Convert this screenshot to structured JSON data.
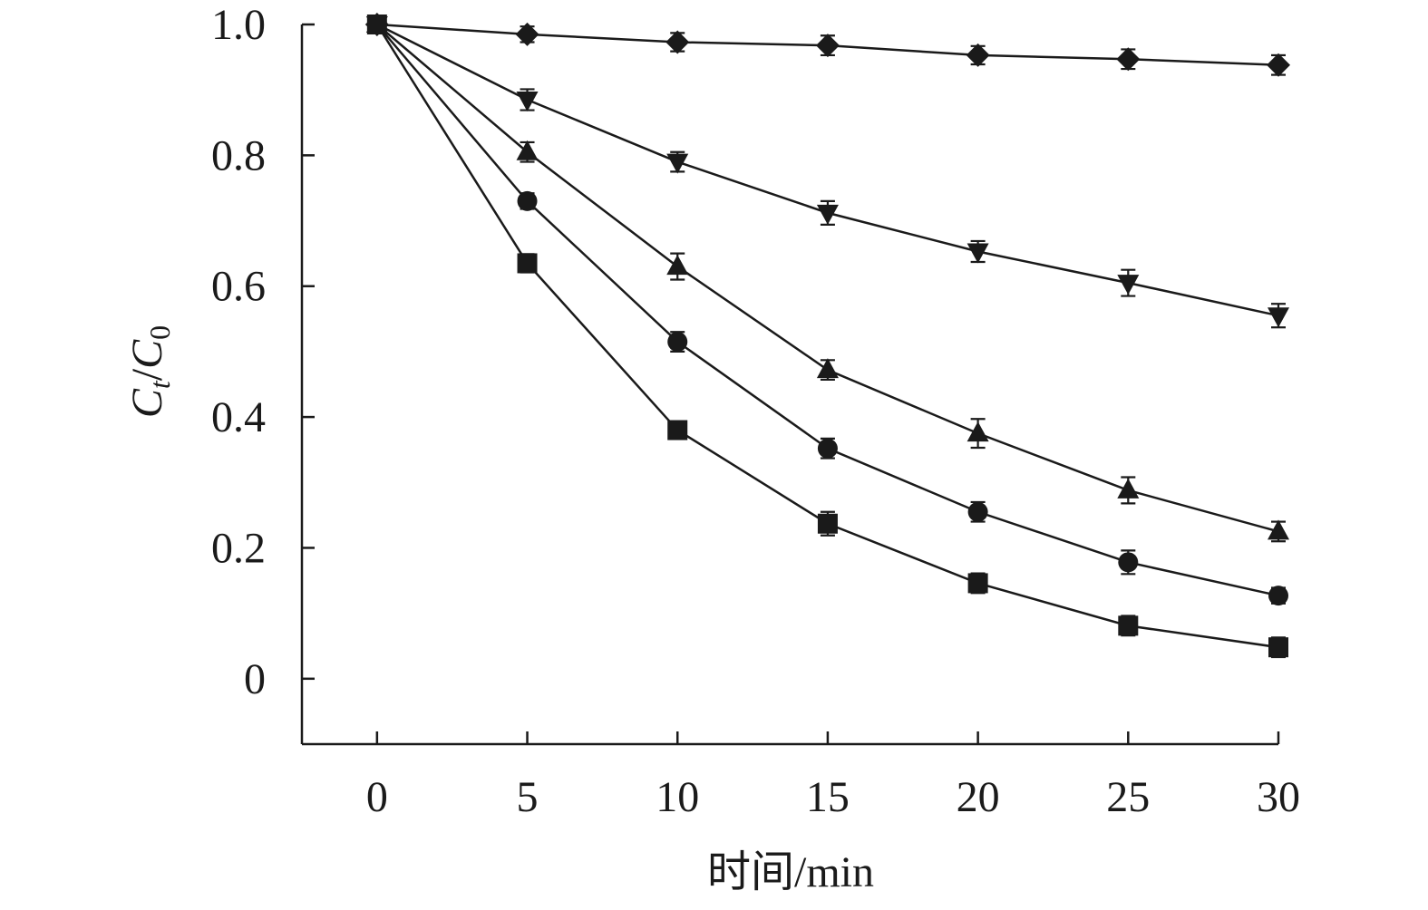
{
  "chart_data": {
    "type": "line",
    "title": "",
    "xlabel": "时间/min",
    "ylabel_parts": {
      "C1": "C",
      "sub1": "t",
      "slash": "/",
      "C2": "C",
      "sub2": "0"
    },
    "x": [
      0,
      5,
      10,
      15,
      20,
      25,
      30
    ],
    "xlim": [
      -2.5,
      30
    ],
    "ylim": [
      -0.1,
      1.0
    ],
    "xticks": [
      0,
      5,
      10,
      15,
      20,
      25,
      30
    ],
    "xtick_labels": [
      "0",
      "5",
      "10",
      "15",
      "20",
      "25",
      "30"
    ],
    "yticks": [
      0,
      0.2,
      0.4,
      0.6,
      0.8,
      1.0
    ],
    "ytick_labels": [
      "0",
      "0.2",
      "0.4",
      "0.6",
      "0.8",
      "1.0"
    ],
    "grid": false,
    "legend": "none",
    "color": "#1a1a1a",
    "series": [
      {
        "marker": "diamond",
        "values": [
          1.0,
          0.985,
          0.973,
          0.968,
          0.953,
          0.947,
          0.938
        ],
        "errors": [
          0.008,
          0.012,
          0.014,
          0.015,
          0.014,
          0.015,
          0.015
        ]
      },
      {
        "marker": "triangle-down",
        "values": [
          1.0,
          0.885,
          0.79,
          0.712,
          0.653,
          0.605,
          0.555
        ],
        "errors": [
          0.008,
          0.016,
          0.015,
          0.018,
          0.016,
          0.02,
          0.018
        ]
      },
      {
        "marker": "triangle-up",
        "values": [
          1.0,
          0.805,
          0.63,
          0.472,
          0.375,
          0.288,
          0.225
        ],
        "errors": [
          0.008,
          0.015,
          0.02,
          0.015,
          0.022,
          0.02,
          0.015
        ]
      },
      {
        "marker": "circle",
        "values": [
          1.0,
          0.73,
          0.515,
          0.352,
          0.255,
          0.178,
          0.127
        ],
        "errors": [
          0.008,
          0.012,
          0.015,
          0.015,
          0.015,
          0.018,
          0.012
        ]
      },
      {
        "marker": "square",
        "values": [
          1.0,
          0.635,
          0.38,
          0.237,
          0.146,
          0.081,
          0.048
        ],
        "errors": [
          0.008,
          0.014,
          0.01,
          0.018,
          0.015,
          0.015,
          0.015
        ]
      }
    ]
  }
}
